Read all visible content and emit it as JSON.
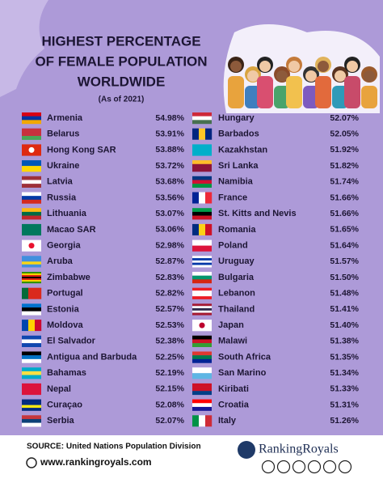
{
  "header": {
    "title_lines": [
      "HIGHEST PERCENTAGE",
      "OF FEMALE POPULATION",
      "WORLDWIDE"
    ],
    "subtitle": "(As of 2021)"
  },
  "table": {
    "columns": [
      [
        {
          "country": "Armenia",
          "value": "54.98%"
        },
        {
          "country": "Belarus",
          "value": "53.91%"
        },
        {
          "country": "Hong Kong SAR",
          "value": "53.88%"
        },
        {
          "country": "Ukraine",
          "value": "53.72%"
        },
        {
          "country": "Latvia",
          "value": "53.68%"
        },
        {
          "country": "Russia",
          "value": "53.56%"
        },
        {
          "country": "Lithuania",
          "value": "53.07%"
        },
        {
          "country": "Macao SAR",
          "value": "53.06%"
        },
        {
          "country": "Georgia",
          "value": "52.98%"
        },
        {
          "country": "Aruba",
          "value": "52.87%"
        },
        {
          "country": "Zimbabwe",
          "value": "52.83%"
        },
        {
          "country": "Portugal",
          "value": "52.82%"
        },
        {
          "country": "Estonia",
          "value": "52.57%"
        },
        {
          "country": "Moldova",
          "value": "52.53%"
        },
        {
          "country": "El Salvador",
          "value": "52.38%"
        },
        {
          "country": "Antigua and Barbuda",
          "value": "52.25%"
        },
        {
          "country": "Bahamas",
          "value": "52.19%"
        },
        {
          "country": "Nepal",
          "value": "52.15%"
        },
        {
          "country": "Curaçao",
          "value": "52.08%"
        },
        {
          "country": "Serbia",
          "value": "52.07%"
        }
      ],
      [
        {
          "country": "Hungary",
          "value": "52.07%"
        },
        {
          "country": "Barbados",
          "value": "52.05%"
        },
        {
          "country": "Kazakhstan",
          "value": "51.92%"
        },
        {
          "country": "Sri Lanka",
          "value": "51.82%"
        },
        {
          "country": "Namibia",
          "value": "51.74%"
        },
        {
          "country": "France",
          "value": "51.66%"
        },
        {
          "country": "St. Kitts and Nevis",
          "value": "51.66%"
        },
        {
          "country": "Romania",
          "value": "51.65%"
        },
        {
          "country": "Poland",
          "value": "51.64%"
        },
        {
          "country": "Uruguay",
          "value": "51.57%"
        },
        {
          "country": "Bulgaria",
          "value": "51.50%"
        },
        {
          "country": "Lebanon",
          "value": "51.48%"
        },
        {
          "country": "Thailand",
          "value": "51.41%"
        },
        {
          "country": "Japan",
          "value": "51.40%"
        },
        {
          "country": "Malawi",
          "value": "51.38%"
        },
        {
          "country": "South Africa",
          "value": "51.35%"
        },
        {
          "country": "San Marino",
          "value": "51.34%"
        },
        {
          "country": "Kiribati",
          "value": "51.33%"
        },
        {
          "country": "Croatia",
          "value": "51.31%"
        },
        {
          "country": "Italy",
          "value": "51.26%"
        }
      ]
    ]
  },
  "footer": {
    "source": "SOURCE: United Nations Population Division",
    "website": "www.rankingroyals.com",
    "brand": "RankingRoyals"
  }
}
